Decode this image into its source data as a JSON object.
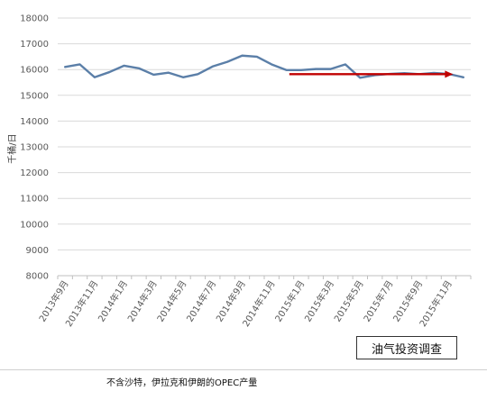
{
  "chart_data": {
    "type": "line",
    "title": "",
    "xlabel": "",
    "ylabel": "千桶/日",
    "ylim": [
      8000,
      18000
    ],
    "yticks": [
      8000,
      9000,
      10000,
      11000,
      12000,
      13000,
      14000,
      15000,
      16000,
      17000,
      18000
    ],
    "x_tick_labels": [
      "2013年9月",
      "2013年11月",
      "2014年1月",
      "2014年3月",
      "2014年5月",
      "2014年7月",
      "2014年9月",
      "2014年11月",
      "2015年1月",
      "2015年3月",
      "2015年5月",
      "2015年7月",
      "2015年9月",
      "2015年11月"
    ],
    "categories": [
      "2013年9月",
      "2013年10月",
      "2013年11月",
      "2013年12月",
      "2014年1月",
      "2014年2月",
      "2014年3月",
      "2014年4月",
      "2014年5月",
      "2014年6月",
      "2014年7月",
      "2014年8月",
      "2014年9月",
      "2014年10月",
      "2014年11月",
      "2014年12月",
      "2015年1月",
      "2015年2月",
      "2015年3月",
      "2015年4月",
      "2015年5月",
      "2015年6月",
      "2015年7月",
      "2015年8月",
      "2015年9月",
      "2015年10月",
      "2015年11月",
      "2015年12月"
    ],
    "series": [
      {
        "color": "#5b7fa8",
        "values": [
          16100,
          16200,
          15700,
          15900,
          16150,
          16050,
          15800,
          15880,
          15700,
          15820,
          16120,
          16300,
          16540,
          16500,
          16200,
          15980,
          15980,
          16020,
          16020,
          16200,
          15680,
          15780,
          15830,
          15860,
          15820,
          15870,
          15830,
          15700
        ]
      }
    ],
    "annotation_arrow": {
      "color": "#c00000",
      "y": 15820,
      "from_index": 15.2,
      "to_index": 26.3
    },
    "grid": true,
    "legend": "none"
  },
  "watermark": "油气投资调查",
  "caption": "不含沙特，伊拉克和伊朗的OPEC产量"
}
